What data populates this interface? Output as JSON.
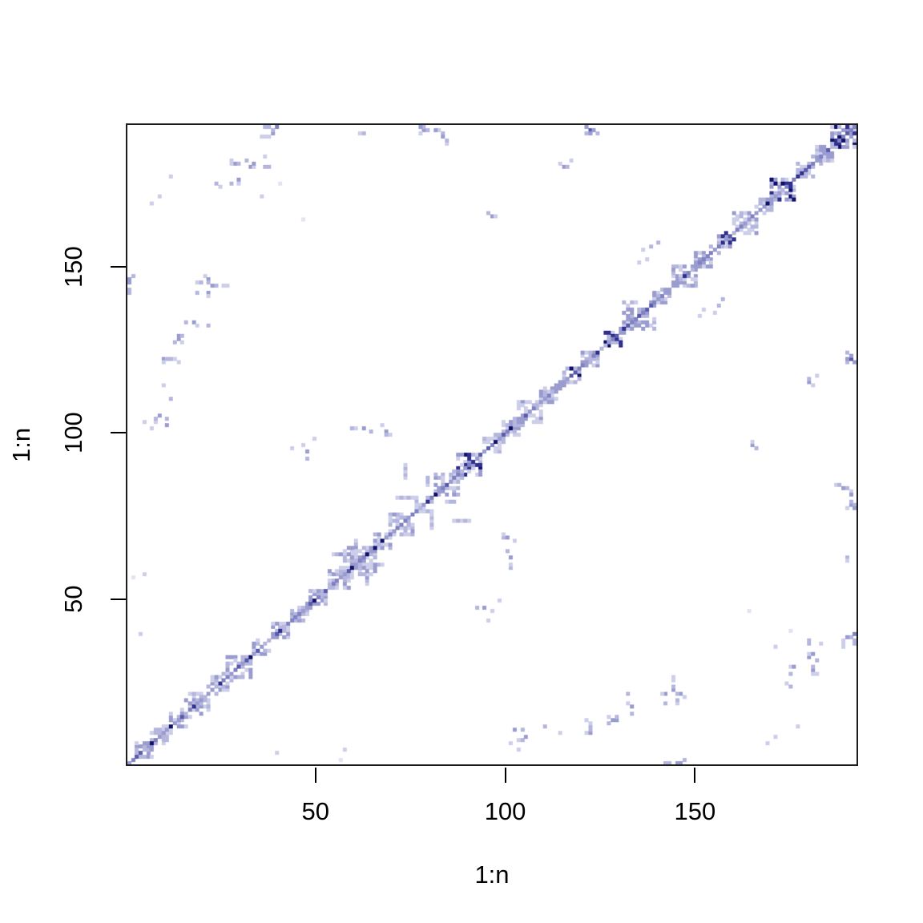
{
  "figure": {
    "background": "#ffffff"
  },
  "chart_data": {
    "type": "heatmap",
    "title": "",
    "xlabel": "1:n",
    "ylabel": "1:n",
    "n": 193,
    "x_ticks": [
      50,
      100,
      150
    ],
    "y_ticks": [
      50,
      100,
      150
    ],
    "axis_color": "#000000",
    "box_color": "#1c1c1c",
    "background": "#ffffff",
    "palette": [
      "#e3e4f3",
      "#cdcee9",
      "#b4b6dd",
      "#9a9cd0",
      "#8082c1",
      "#5a5cab",
      "#30308f",
      "#12126b"
    ],
    "seed": 42,
    "diagonal": {
      "present": true,
      "weights": [
        0.12,
        0.45,
        0.75,
        0.92,
        0.97
      ]
    },
    "band": {
      "p1": 0.42,
      "p2": 0.15
    },
    "knots": [
      [
        5,
        2,
        0.5,
        0
      ],
      [
        9,
        2,
        0.4,
        0
      ],
      [
        14,
        2,
        0.45,
        0
      ],
      [
        19,
        3,
        0.5,
        0
      ],
      [
        25,
        2,
        0.4,
        0
      ],
      [
        30,
        3,
        0.5,
        0
      ],
      [
        36,
        2,
        0.45,
        0
      ],
      [
        41,
        2,
        0.4,
        0
      ],
      [
        46,
        2,
        0.35,
        0
      ],
      [
        51,
        2,
        0.4,
        0
      ],
      [
        57,
        3,
        0.5,
        0
      ],
      [
        62,
        4,
        0.55,
        0
      ],
      [
        68,
        2,
        0.4,
        0
      ],
      [
        73,
        3,
        0.45,
        0
      ],
      [
        79,
        2,
        0.4,
        0
      ],
      [
        85,
        3,
        0.5,
        0
      ],
      [
        91,
        3,
        0.55,
        1
      ],
      [
        97,
        2,
        0.4,
        0
      ],
      [
        102,
        2,
        0.45,
        0
      ],
      [
        107,
        3,
        0.5,
        0
      ],
      [
        112,
        2,
        0.45,
        0
      ],
      [
        118,
        2,
        0.4,
        1
      ],
      [
        123,
        2,
        0.45,
        0
      ],
      [
        129,
        2,
        0.5,
        1
      ],
      [
        136,
        4,
        0.5,
        0
      ],
      [
        142,
        2,
        0.4,
        0
      ],
      [
        148,
        3,
        0.45,
        0
      ],
      [
        153,
        2,
        0.4,
        0
      ],
      [
        159,
        2,
        0.5,
        1
      ],
      [
        164,
        3,
        0.5,
        0
      ],
      [
        169,
        2,
        0.4,
        0
      ],
      [
        174,
        3,
        0.55,
        1
      ],
      [
        180,
        2,
        0.4,
        0
      ],
      [
        185,
        2,
        0.45,
        0
      ],
      [
        190,
        3,
        0.55,
        1
      ],
      [
        193,
        2,
        0.5,
        1
      ]
    ],
    "mirror_points": true,
    "points": [
      [
        37,
        193,
        3
      ],
      [
        38,
        193,
        4
      ],
      [
        39,
        192,
        3
      ],
      [
        36,
        190,
        2
      ],
      [
        37,
        190,
        3
      ],
      [
        38,
        190,
        2
      ],
      [
        78,
        193,
        3
      ],
      [
        79,
        192,
        4
      ],
      [
        80,
        192,
        3
      ],
      [
        83,
        192,
        2
      ],
      [
        84,
        191,
        3
      ],
      [
        85,
        189,
        4
      ],
      [
        85,
        188,
        2
      ],
      [
        28,
        182,
        2
      ],
      [
        29,
        182,
        4
      ],
      [
        30,
        182,
        3
      ],
      [
        33,
        181,
        4
      ],
      [
        34,
        181,
        2
      ],
      [
        37,
        181,
        3
      ],
      [
        24,
        176,
        3
      ],
      [
        30,
        176,
        2
      ],
      [
        41,
        176,
        1
      ],
      [
        36,
        172,
        2
      ],
      [
        19,
        146,
        2
      ],
      [
        20,
        146,
        3
      ],
      [
        21,
        148,
        2
      ],
      [
        22,
        147,
        4
      ],
      [
        22,
        146,
        3
      ],
      [
        23,
        145,
        4
      ],
      [
        24,
        145,
        3
      ],
      [
        26,
        145,
        2
      ],
      [
        27,
        145,
        2
      ],
      [
        1,
        147,
        4
      ],
      [
        1,
        144,
        3
      ],
      [
        19,
        143,
        3
      ],
      [
        22,
        143,
        4
      ],
      [
        22,
        142,
        2
      ],
      [
        16,
        134,
        3
      ],
      [
        18,
        134,
        4
      ],
      [
        19,
        133,
        2
      ],
      [
        22,
        133,
        3
      ],
      [
        13,
        128,
        3
      ],
      [
        14,
        130,
        4
      ],
      [
        14,
        129,
        4
      ],
      [
        15,
        130,
        3
      ],
      [
        15,
        128,
        2
      ],
      [
        10,
        123,
        4
      ],
      [
        11,
        123,
        3
      ],
      [
        12,
        123,
        3
      ],
      [
        13,
        123,
        2
      ],
      [
        10,
        122,
        2
      ],
      [
        14,
        122,
        2
      ],
      [
        12,
        111,
        3
      ],
      [
        11,
        105,
        3
      ],
      [
        11,
        103,
        4
      ],
      [
        7,
        102,
        2
      ],
      [
        60,
        102,
        3
      ],
      [
        61,
        102,
        2
      ],
      [
        63,
        102,
        4
      ],
      [
        65,
        101,
        3
      ],
      [
        68,
        103,
        2
      ],
      [
        69,
        101,
        4
      ],
      [
        69,
        100,
        3
      ],
      [
        70,
        100,
        2
      ],
      [
        96,
        167,
        3
      ],
      [
        97,
        166,
        4
      ],
      [
        98,
        166,
        2
      ],
      [
        115,
        182,
        2
      ],
      [
        116,
        181,
        4
      ],
      [
        117,
        181,
        3
      ],
      [
        118,
        183,
        2
      ],
      [
        122,
        193,
        4
      ],
      [
        123,
        192,
        6
      ],
      [
        124,
        192,
        4
      ],
      [
        122,
        191,
        3
      ],
      [
        123,
        191,
        4
      ],
      [
        125,
        191,
        3
      ],
      [
        137,
        156,
        2
      ],
      [
        139,
        157,
        3
      ],
      [
        141,
        158,
        3
      ],
      [
        136,
        152,
        2
      ],
      [
        138,
        153,
        2
      ],
      [
        74,
        87,
        2
      ],
      [
        74,
        88,
        3
      ],
      [
        74,
        89,
        2
      ],
      [
        74,
        90,
        3
      ],
      [
        74,
        91,
        2
      ],
      [
        72,
        81,
        2
      ],
      [
        73,
        81,
        3
      ],
      [
        74,
        81,
        2
      ],
      [
        75,
        81,
        3
      ],
      [
        76,
        81,
        2
      ],
      [
        80,
        85,
        2
      ],
      [
        80,
        86,
        3
      ],
      [
        80,
        87,
        3
      ],
      [
        61,
        63,
        2
      ],
      [
        61,
        64,
        3
      ],
      [
        61,
        65,
        2
      ],
      [
        61,
        66,
        4
      ],
      [
        61,
        67,
        3
      ],
      [
        61,
        68,
        2
      ],
      [
        55,
        64,
        2
      ],
      [
        56,
        64,
        3
      ],
      [
        57,
        64,
        4
      ],
      [
        58,
        64,
        2
      ],
      [
        93,
        48,
        3
      ],
      [
        95,
        48,
        4
      ],
      [
        97,
        47,
        2
      ],
      [
        99,
        50,
        2
      ],
      [
        96,
        44,
        2
      ],
      [
        104,
        8,
        2
      ],
      [
        105,
        8,
        3
      ],
      [
        106,
        9,
        4
      ],
      [
        104,
        5,
        2
      ],
      [
        111,
        12,
        3
      ],
      [
        115,
        10,
        2
      ],
      [
        40,
        4,
        2
      ],
      [
        58,
        5,
        2
      ],
      [
        57,
        2,
        1
      ],
      [
        175,
        25,
        2
      ],
      [
        176,
        28,
        3
      ],
      [
        177,
        30,
        4
      ],
      [
        181,
        38,
        3
      ],
      [
        182,
        34,
        4
      ],
      [
        183,
        32,
        3
      ],
      [
        183,
        28,
        2
      ],
      [
        184,
        37,
        2
      ],
      [
        170,
        7,
        2
      ],
      [
        172,
        9,
        2
      ],
      [
        178,
        12,
        2
      ],
      [
        191,
        39,
        4
      ],
      [
        192,
        39,
        3
      ],
      [
        193,
        40,
        5
      ],
      [
        190,
        37,
        2
      ],
      [
        193,
        38,
        3
      ],
      [
        189,
        85,
        3
      ],
      [
        190,
        84,
        4
      ],
      [
        192,
        83,
        2
      ],
      [
        192,
        82,
        4
      ],
      [
        193,
        79,
        3
      ],
      [
        191,
        78,
        2
      ],
      [
        193,
        78,
        4
      ],
      [
        191,
        63,
        3
      ],
      [
        191,
        62,
        2
      ],
      [
        165,
        47,
        1
      ],
      [
        143,
        1,
        3
      ],
      [
        146,
        1,
        4
      ],
      [
        148,
        2,
        3
      ]
    ]
  }
}
